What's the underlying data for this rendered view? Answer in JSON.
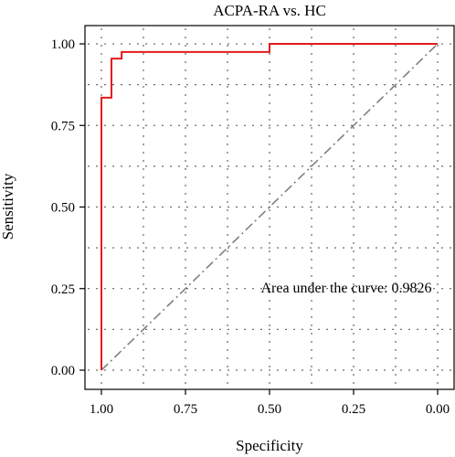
{
  "chart_data": {
    "type": "line",
    "title": "ACPA-RA vs. HC",
    "xlabel": "Specificity",
    "ylabel": "Sensitivity",
    "x_reversed": true,
    "xlim": [
      1.0,
      0.0
    ],
    "ylim": [
      0.0,
      1.0
    ],
    "x_ticks": [
      1.0,
      0.75,
      0.5,
      0.25,
      0.0
    ],
    "x_tick_labels": [
      "1.00",
      "0.75",
      "0.50",
      "0.25",
      "0.00"
    ],
    "y_ticks": [
      0.0,
      0.25,
      0.5,
      0.75,
      1.0
    ],
    "y_tick_labels": [
      "0.00",
      "0.25",
      "0.50",
      "0.75",
      "1.00"
    ],
    "grid": "dotted",
    "series": [
      {
        "color": "#e41a1c",
        "style": "step",
        "x": [
          1.0,
          1.0,
          0.97,
          0.97,
          0.94,
          0.94,
          0.92,
          0.92,
          0.5,
          0.5,
          0.0
        ],
        "y": [
          0.0,
          0.835,
          0.835,
          0.955,
          0.955,
          0.975,
          0.975,
          0.975,
          0.975,
          1.0,
          1.0
        ]
      }
    ],
    "reference_line": {
      "x": [
        1.0,
        0.0
      ],
      "y": [
        0.0,
        1.0
      ],
      "color": "#808080",
      "style": "dash-dot"
    },
    "annotation": "Area under the curve: 0.9826"
  }
}
